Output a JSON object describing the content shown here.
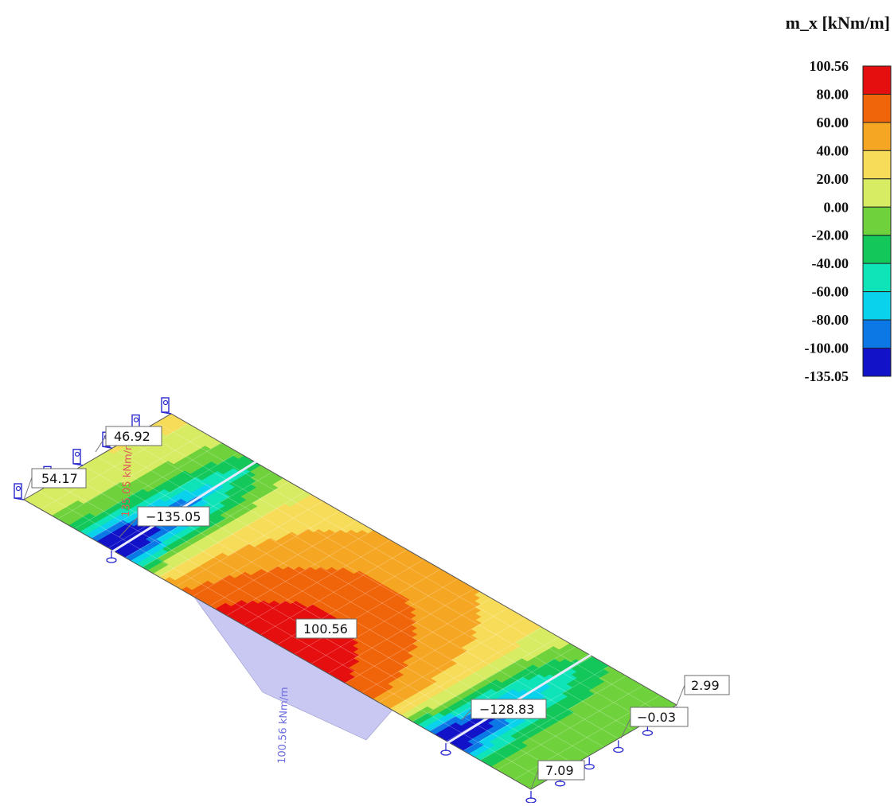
{
  "legend": {
    "title": "m_x [kNm/m]",
    "levels": [
      {
        "value": "100.56",
        "color": "#e60f0f"
      },
      {
        "value": "80.00",
        "color": "#f0640a"
      },
      {
        "value": "60.00",
        "color": "#f5a623"
      },
      {
        "value": "40.00",
        "color": "#f7dc5a"
      },
      {
        "value": "20.00",
        "color": "#d7ec63"
      },
      {
        "value": "0.00",
        "color": "#6fd23c"
      },
      {
        "value": "-20.00",
        "color": "#13c75a"
      },
      {
        "value": "-40.00",
        "color": "#0fe3b8"
      },
      {
        "value": "-60.00",
        "color": "#0ad2ec"
      },
      {
        "value": "-80.00",
        "color": "#0b78e6"
      },
      {
        "value": "-100.00",
        "color": "#1212c8"
      },
      {
        "value": "-135.05",
        "color": ""
      }
    ]
  },
  "results": {
    "max_label": "100.56",
    "min_left_label": "−135.05",
    "min_right_label": "−128.83",
    "corner_far_left": "54.17",
    "corner_far_left_top": "46.92",
    "corner_right_top": "2.99",
    "corner_right_mid": "−0.03",
    "corner_near": "7.09"
  },
  "beam_diagram": {
    "neg_label": "135.05 kNm/m",
    "pos_label": "100.56 kNm/m",
    "neg_color": "#f2b8b8",
    "pos_color": "#c9c8f2",
    "label_color_neg": "#e05a5a",
    "label_color_pos": "#6e6ee0"
  },
  "supports": {
    "color": "#2a2ad0"
  }
}
